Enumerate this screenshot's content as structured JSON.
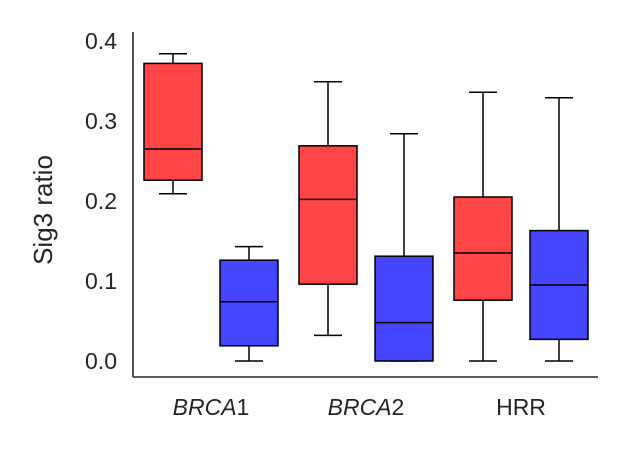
{
  "chart_data": {
    "type": "box",
    "title": "",
    "xlabel": "",
    "ylabel": "Sig3 ratio",
    "ylim": [
      -0.02,
      0.42
    ],
    "yticks": [
      "0.0",
      "0.1",
      "0.2",
      "0.3",
      "0.4"
    ],
    "grid": false,
    "legend": "none",
    "categories": [
      {
        "label_italic": "BRCA",
        "label_plain": "1"
      },
      {
        "label_italic": "BRCA",
        "label_plain": "2"
      },
      {
        "label_italic": "",
        "label_plain": "HRR"
      }
    ],
    "series": [
      {
        "color": "#ff4545",
        "boxes": [
          {
            "whisker_low": 0.209,
            "q1": 0.226,
            "median": 0.265,
            "q3": 0.372,
            "whisker_high": 0.384
          },
          {
            "whisker_low": 0.032,
            "q1": 0.096,
            "median": 0.202,
            "q3": 0.269,
            "whisker_high": 0.349
          },
          {
            "whisker_low": 0.0,
            "q1": 0.076,
            "median": 0.135,
            "q3": 0.205,
            "whisker_high": 0.336
          }
        ]
      },
      {
        "color": "#4545ff",
        "boxes": [
          {
            "whisker_low": 0.0,
            "q1": 0.019,
            "median": 0.074,
            "q3": 0.126,
            "whisker_high": 0.143
          },
          {
            "whisker_low": 0.0,
            "q1": 0.0,
            "median": 0.048,
            "q3": 0.131,
            "whisker_high": 0.284
          },
          {
            "whisker_low": 0.0,
            "q1": 0.027,
            "median": 0.095,
            "q3": 0.163,
            "whisker_high": 0.329
          }
        ]
      }
    ]
  }
}
